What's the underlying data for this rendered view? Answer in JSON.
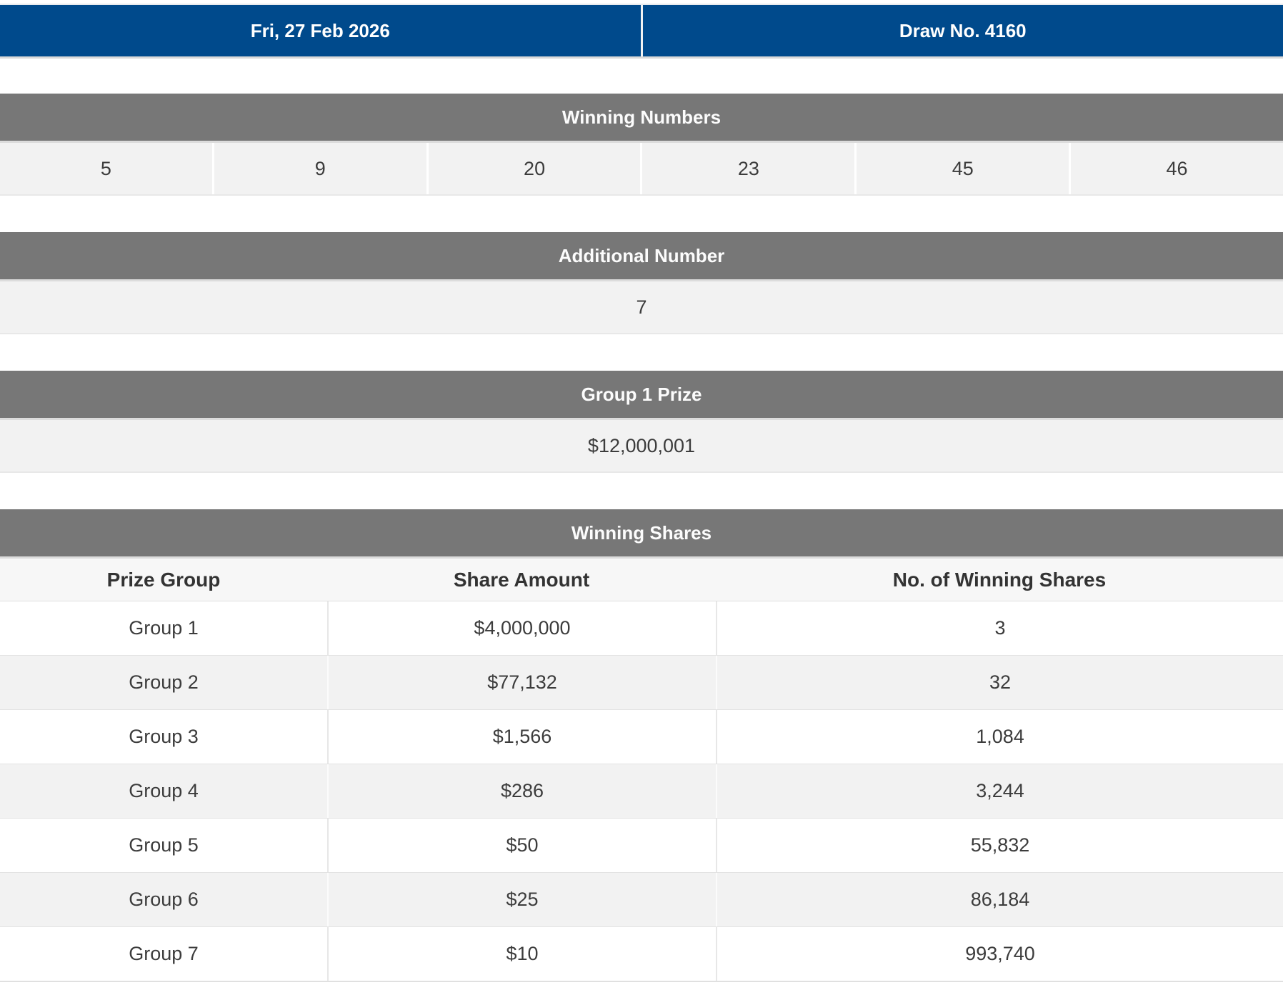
{
  "draw_info": {
    "date": "Fri, 27 Feb 2026",
    "draw_no": "Draw No. 4160"
  },
  "winning_numbers": {
    "title": "Winning Numbers",
    "numbers": [
      "5",
      "9",
      "20",
      "23",
      "45",
      "46"
    ]
  },
  "additional_number": {
    "title": "Additional Number",
    "value": "7"
  },
  "group1_prize": {
    "title": "Group 1 Prize",
    "value": "$12,000,001"
  },
  "winning_shares": {
    "title": "Winning Shares",
    "columns": [
      "Prize Group",
      "Share Amount",
      "No. of Winning Shares"
    ],
    "rows": [
      [
        "Group 1",
        "$4,000,000",
        "3"
      ],
      [
        "Group 2",
        "$77,132",
        "32"
      ],
      [
        "Group 3",
        "$1,566",
        "1,084"
      ],
      [
        "Group 4",
        "$286",
        "3,244"
      ],
      [
        "Group 5",
        "$50",
        "55,832"
      ],
      [
        "Group 6",
        "$25",
        "86,184"
      ],
      [
        "Group 7",
        "$10",
        "993,740"
      ]
    ]
  },
  "colors": {
    "header_blue": "#004A8C",
    "section_bar_gray": "#777777",
    "row_light_gray": "#f2f2f2",
    "table_header_bg": "#f7f7f7",
    "text_dark": "#3c3c3c",
    "text_white": "#ffffff",
    "border_light": "#e0e0e0"
  }
}
